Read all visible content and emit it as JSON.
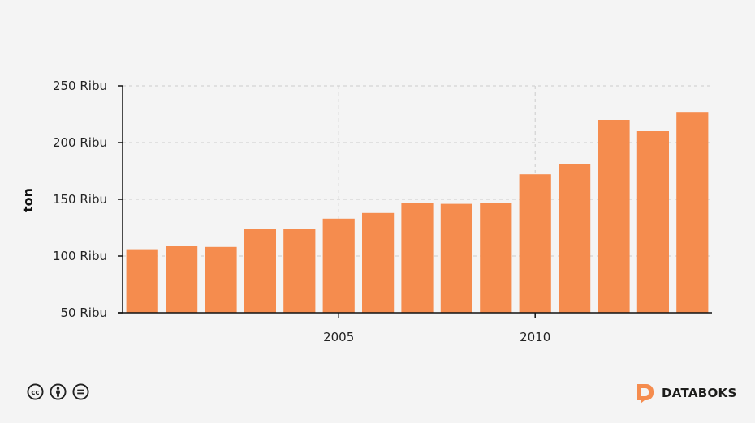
{
  "chart_data": {
    "type": "bar",
    "x": [
      2000,
      2001,
      2002,
      2003,
      2004,
      2005,
      2006,
      2007,
      2008,
      2009,
      2010,
      2011,
      2012,
      2013,
      2014
    ],
    "values": [
      106000,
      109000,
      108000,
      124000,
      124000,
      133000,
      138000,
      147000,
      146000,
      147000,
      172000,
      181000,
      220000,
      210000,
      227000
    ],
    "x_tick_values": [
      2005,
      2010
    ],
    "x_tick_labels": [
      "2005",
      "2010"
    ],
    "y_tick_values": [
      50000,
      100000,
      150000,
      200000,
      250000
    ],
    "y_tick_labels": [
      "50 Ribu",
      "100 Ribu",
      "150 Ribu",
      "200 Ribu",
      "250 Ribu"
    ],
    "ylim": [
      50000,
      250000
    ],
    "ylabel": "ton",
    "bar_color": "#f58c4e",
    "grid": true
  },
  "footer": {
    "license_icons": [
      "cc-icon",
      "by-icon",
      "nd-icon"
    ],
    "brand": "DATABOKS",
    "brand_color": "#f58c4e"
  }
}
